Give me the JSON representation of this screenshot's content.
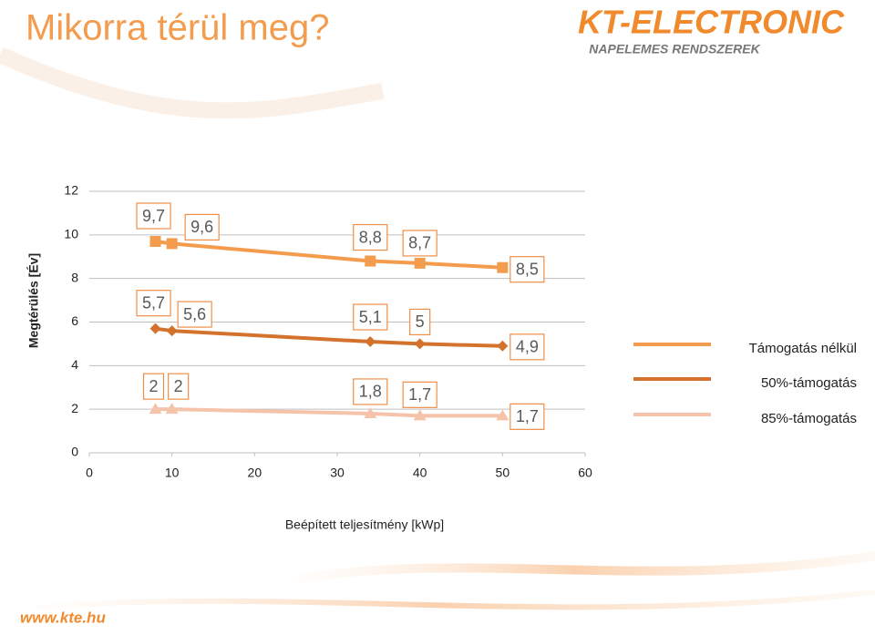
{
  "header": {
    "title": "Mikorra térül meg?",
    "logo": "KT-ELECTRONIC",
    "logo_subtitle": "NAPELEMES RENDSZEREK"
  },
  "footer": {
    "url": "www.kte.hu"
  },
  "chart_data": {
    "type": "line",
    "x_label": "Beépített teljesítmény [kWp]",
    "y_label": "Megtérülés [Év]",
    "x": [
      8,
      10,
      34,
      40,
      50
    ],
    "series": [
      {
        "name": "Támogatás nélkül",
        "color": "#f39c4e",
        "marker": "square",
        "values": [
          9.7,
          9.6,
          8.8,
          8.7,
          8.5
        ],
        "value_labels": [
          "9,7",
          "9,6",
          "8,8",
          "8,7",
          "8,5"
        ]
      },
      {
        "name": "50%-támogatás",
        "color": "#d2722c",
        "marker": "diamond",
        "values": [
          5.7,
          5.6,
          5.1,
          5,
          4.9
        ],
        "value_labels": [
          "5,7",
          "5,6",
          "5,1",
          "5",
          "4,9"
        ]
      },
      {
        "name": "85%-támogatás",
        "color": "#f5c2aa",
        "marker": "triangle",
        "values": [
          2,
          2,
          1.8,
          1.7,
          1.7
        ],
        "value_labels": [
          "2",
          "2",
          "1,8",
          "1,7",
          "1,7"
        ]
      }
    ],
    "xlim": [
      0,
      60
    ],
    "xticks": [
      0,
      10,
      20,
      30,
      40,
      50,
      60
    ],
    "ylim": [
      0,
      12
    ],
    "yticks": [
      0,
      2,
      4,
      6,
      8,
      10,
      12
    ],
    "grid": true,
    "legend": "right"
  }
}
